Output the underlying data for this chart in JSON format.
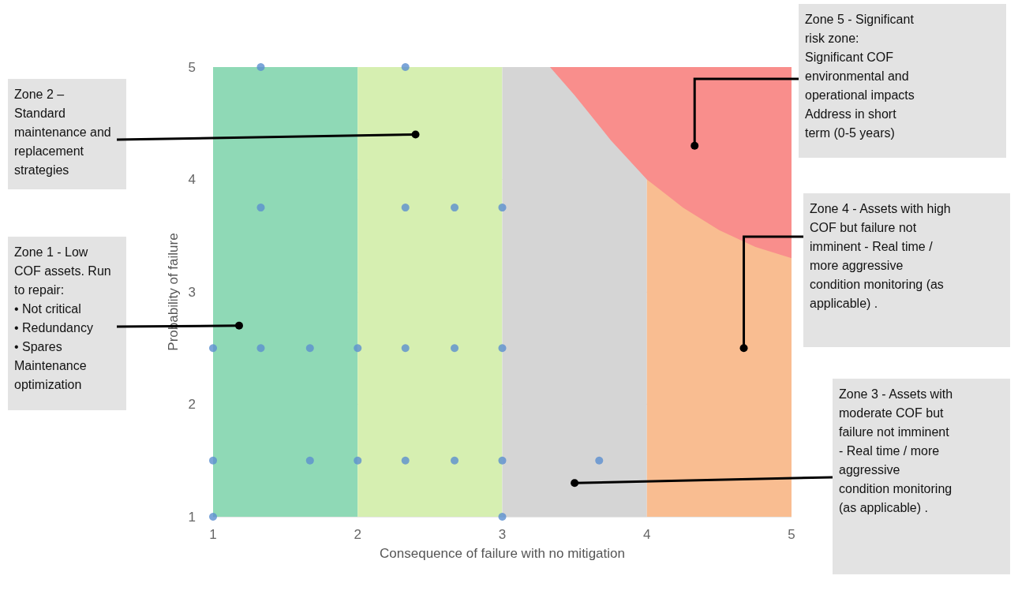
{
  "chart_data": {
    "type": "scatter",
    "xlabel": "Consequence of failure with no mitigation",
    "ylabel": "Probability of failure",
    "xlim": [
      1,
      5
    ],
    "ylim": [
      1,
      5
    ],
    "xticks": [
      1,
      2,
      3,
      4,
      5
    ],
    "yticks": [
      1,
      2,
      3,
      4,
      5
    ],
    "grid": "y",
    "marker": "circle",
    "bands": [
      {
        "axis": "x",
        "from": 1,
        "to": 2,
        "color": "#8fd9b6"
      },
      {
        "axis": "x",
        "from": 2,
        "to": 3,
        "color": "#d6efb1"
      },
      {
        "axis": "x",
        "from": 3,
        "to": 4,
        "color": "#d5d5d5"
      },
      {
        "axis": "x",
        "from": 4,
        "to": 5,
        "color": "#f9bd91"
      }
    ],
    "series": [
      {
        "type": "area",
        "marker": "none",
        "color": "#f98e8c",
        "x": [
          3.33,
          3.5,
          3.75,
          4,
          4.25,
          4.5,
          4.75,
          5,
          5
        ],
        "values": [
          5,
          4.75,
          4.35,
          4,
          3.75,
          3.55,
          3.4,
          3.3,
          5
        ]
      },
      {
        "color": "#5b8fd0",
        "x": [
          1.33,
          2.33,
          1.33,
          2.33,
          2.67,
          3,
          1,
          1.33,
          1.67,
          2,
          2.33,
          2.67,
          3,
          1,
          1.67,
          2,
          2.33,
          2.67,
          3,
          3.67,
          1,
          3
        ],
        "values": [
          5,
          5,
          3.75,
          3.75,
          3.75,
          3.75,
          2.5,
          2.5,
          2.5,
          2.5,
          2.5,
          2.5,
          2.5,
          1.5,
          1.5,
          1.5,
          1.5,
          1.5,
          1.5,
          1.5,
          1,
          1
        ]
      }
    ],
    "annotations": [
      {
        "text": "Zone 2 –\nStandard\nmaintenance and\nreplacement\nstrategies",
        "x": 2.4,
        "y": 4.4
      },
      {
        "text": "Zone 1 - Low\nCOF assets. Run\nto repair:\n• Not critical\n• Redundancy\n• Spares\nMaintenance\noptimization",
        "x": 1.18,
        "y": 2.7
      },
      {
        "text": "Zone 5 - Significant\nrisk zone:\nSignificant COF\nenvironmental and\noperational impacts\nAddress in short\nterm (0-5 years)",
        "x": 4.33,
        "y": 4.3
      },
      {
        "text": "Zone 4 - Assets with high\nCOF but failure not\nimminent - Real time /\nmore aggressive\ncondition monitoring (as\napplicable) .",
        "x": 4.67,
        "y": 2.5
      },
      {
        "text": "Zone 3 - Assets with\nmoderate COF but\nfailure not imminent\n- Real time / more\naggressive\ncondition monitoring\n(as applicable) .",
        "x": 3.5,
        "y": 1.3
      }
    ]
  }
}
